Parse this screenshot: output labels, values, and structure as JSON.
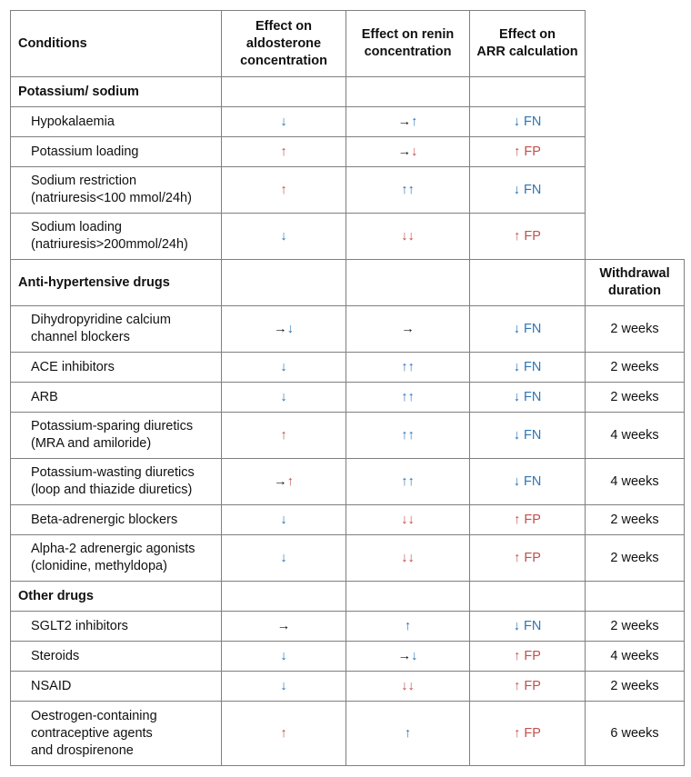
{
  "colors": {
    "k": "#111111",
    "b": "#2e75b6",
    "r": "#c0504d"
  },
  "table": {
    "header": [
      "Conditions",
      "Effect on\naldosterone\nconcentration",
      "Effect on renin\nconcentration",
      "Effect on\nARR calculation"
    ],
    "rows": [
      {
        "type": "section",
        "label": "Potassium/ sodium",
        "extra": null
      },
      {
        "type": "item",
        "label": "Hypokalaemia",
        "cells": [
          [
            [
              "↓",
              "b"
            ]
          ],
          [
            [
              "→",
              "k"
            ],
            [
              "↑",
              "b"
            ]
          ],
          [
            [
              "↓ FN",
              "b"
            ]
          ]
        ]
      },
      {
        "type": "item",
        "label": "Potassium loading",
        "cells": [
          [
            [
              "↑",
              "r"
            ]
          ],
          [
            [
              "→",
              "k"
            ],
            [
              "↓",
              "r"
            ]
          ],
          [
            [
              "↑ FP",
              "r"
            ]
          ]
        ]
      },
      {
        "type": "item",
        "label": "Sodium restriction\n(natriuresis<100 mmol/24h)",
        "cells": [
          [
            [
              "↑",
              "r"
            ]
          ],
          [
            [
              "↑↑",
              "b"
            ]
          ],
          [
            [
              "↓ FN",
              "b"
            ]
          ]
        ]
      },
      {
        "type": "item",
        "label": "Sodium loading\n(natriuresis>200mmol/24h)",
        "cells": [
          [
            [
              "↓",
              "b"
            ]
          ],
          [
            [
              "↓↓",
              "r"
            ]
          ],
          [
            [
              "↑ FP",
              "r"
            ]
          ]
        ]
      },
      {
        "type": "section",
        "label": "Anti-hypertensive drugs",
        "extra": "Withdrawal\nduration"
      },
      {
        "type": "item",
        "label": "Dihydropyridine calcium\nchannel blockers",
        "cells": [
          [
            [
              "→",
              "k"
            ],
            [
              "↓",
              "b"
            ]
          ],
          [
            [
              "→",
              "k"
            ]
          ],
          [
            [
              "↓ FN",
              "b"
            ]
          ]
        ],
        "withdrawal": "2 weeks"
      },
      {
        "type": "item",
        "label": "ACE inhibitors",
        "cells": [
          [
            [
              "↓",
              "b"
            ]
          ],
          [
            [
              "↑↑",
              "b"
            ]
          ],
          [
            [
              "↓ FN",
              "b"
            ]
          ]
        ],
        "withdrawal": "2 weeks"
      },
      {
        "type": "item",
        "label": "ARB",
        "cells": [
          [
            [
              "↓",
              "b"
            ]
          ],
          [
            [
              "↑↑",
              "b"
            ]
          ],
          [
            [
              "↓ FN",
              "b"
            ]
          ]
        ],
        "withdrawal": "2 weeks"
      },
      {
        "type": "item",
        "label": "Potassium-sparing diuretics\n(MRA and amiloride)",
        "cells": [
          [
            [
              "↑",
              "r"
            ]
          ],
          [
            [
              "↑↑",
              "b"
            ]
          ],
          [
            [
              "↓ FN",
              "b"
            ]
          ]
        ],
        "withdrawal": "4 weeks"
      },
      {
        "type": "item",
        "label": "Potassium-wasting diuretics\n(loop and thiazide diuretics)",
        "cells": [
          [
            [
              "→",
              "k"
            ],
            [
              "↑",
              "r"
            ]
          ],
          [
            [
              "↑↑",
              "b"
            ]
          ],
          [
            [
              "↓ FN",
              "b"
            ]
          ]
        ],
        "withdrawal": "4 weeks"
      },
      {
        "type": "item",
        "label": "Beta-adrenergic blockers",
        "cells": [
          [
            [
              "↓",
              "b"
            ]
          ],
          [
            [
              "↓↓",
              "r"
            ]
          ],
          [
            [
              "↑ FP",
              "r"
            ]
          ]
        ],
        "withdrawal": "2 weeks"
      },
      {
        "type": "item",
        "label": "Alpha-2 adrenergic agonists\n(clonidine, methyldopa)",
        "cells": [
          [
            [
              "↓",
              "b"
            ]
          ],
          [
            [
              "↓↓",
              "r"
            ]
          ],
          [
            [
              "↑ FP",
              "r"
            ]
          ]
        ],
        "withdrawal": "2 weeks"
      },
      {
        "type": "section",
        "label": "Other drugs",
        "extra": ""
      },
      {
        "type": "item",
        "label": "SGLT2 inhibitors",
        "cells": [
          [
            [
              "→",
              "k"
            ]
          ],
          [
            [
              "↑",
              "b"
            ]
          ],
          [
            [
              "↓ FN",
              "b"
            ]
          ]
        ],
        "withdrawal": "2 weeks"
      },
      {
        "type": "item",
        "label": "Steroids",
        "cells": [
          [
            [
              "↓",
              "b"
            ]
          ],
          [
            [
              "→",
              "k"
            ],
            [
              "↓",
              "b"
            ]
          ],
          [
            [
              "↑ FP",
              "r"
            ]
          ]
        ],
        "withdrawal": "4 weeks"
      },
      {
        "type": "item",
        "label": "NSAID",
        "cells": [
          [
            [
              "↓",
              "b"
            ]
          ],
          [
            [
              "↓↓",
              "r"
            ]
          ],
          [
            [
              "↑ FP",
              "r"
            ]
          ]
        ],
        "withdrawal": "2 weeks"
      },
      {
        "type": "item",
        "label": "Oestrogen-containing\ncontraceptive agents\nand drospirenone",
        "cells": [
          [
            [
              "↑",
              "r"
            ]
          ],
          [
            [
              "↑",
              "b"
            ]
          ],
          [
            [
              "↑ FP",
              "r"
            ]
          ]
        ],
        "withdrawal": "6 weeks"
      }
    ]
  }
}
